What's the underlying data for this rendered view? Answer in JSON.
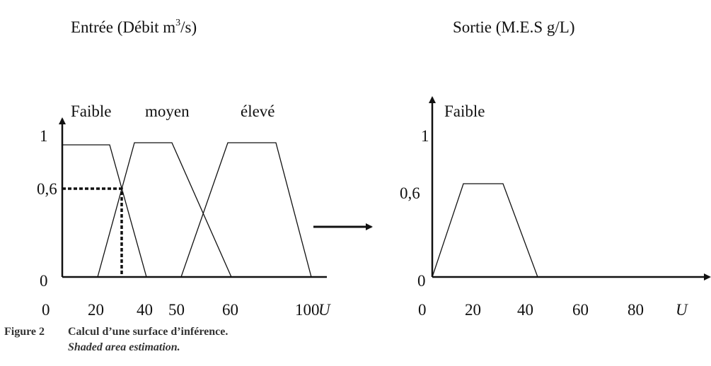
{
  "left_panel": {
    "title": {
      "text": "Entrée (Débit m",
      "superscript": "3",
      "suffix": "/s)"
    },
    "set_labels": [
      "Faible",
      "moyen",
      "élevé"
    ],
    "y_labels": [
      "1",
      "0,6",
      "0"
    ],
    "x_labels": [
      "0",
      "20",
      "40",
      "50",
      "60",
      "100"
    ],
    "x_axis_name": "U"
  },
  "right_panel": {
    "title": "Sortie (M.E.S g/L)",
    "set_labels": [
      "Faible"
    ],
    "y_labels": [
      "1",
      "0,6",
      "0"
    ],
    "x_labels": [
      "0",
      "20",
      "40",
      "60",
      "80"
    ],
    "x_axis_name": "U"
  },
  "caption": {
    "number": "Figure 2",
    "title": "Calcul d’une surface d’inférence.",
    "subtitle": "Shaded area estimation."
  }
}
